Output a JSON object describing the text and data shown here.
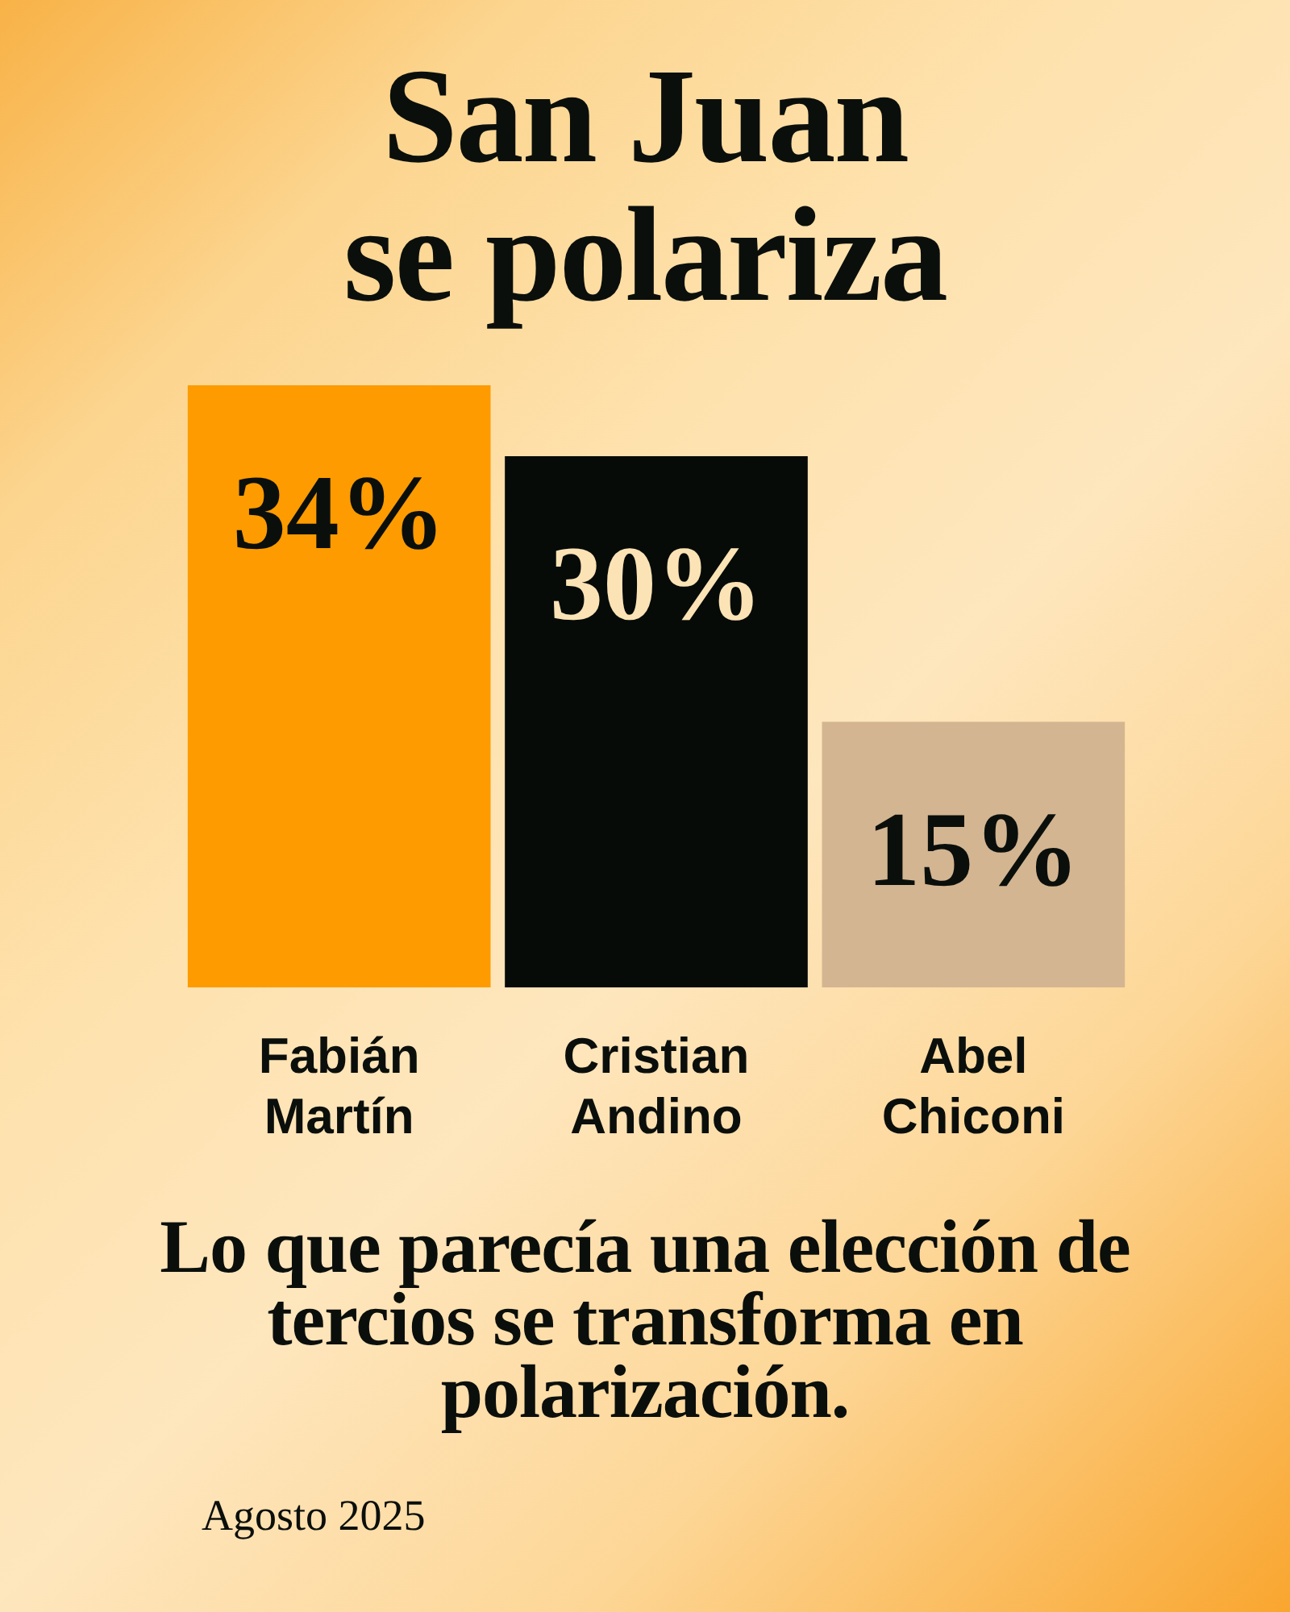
{
  "chart_data": {
    "type": "bar",
    "title": "San Juan se polariza",
    "categories": [
      "Fabián Martín",
      "Cristian Andino",
      "Abel Chiconi"
    ],
    "values": [
      34,
      30,
      15
    ],
    "colors": [
      "#fd9b00",
      "#060b08",
      "#d3b591"
    ],
    "value_labels": [
      "34%",
      "30%",
      "15%"
    ],
    "tick_labels": "x",
    "annotations": [
      "Lo que parecía una elección de tercios se transforma en polarización.",
      "Agosto 2025"
    ]
  }
}
